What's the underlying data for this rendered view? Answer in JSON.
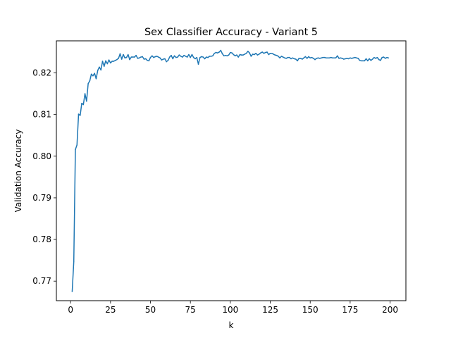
{
  "chart_data": {
    "type": "line",
    "title": "Sex Classifier Accuracy - Variant 5",
    "xlabel": "k",
    "ylabel": "Validation Accuracy",
    "xlim": [
      -8.9,
      209.9
    ],
    "ylim": [
      0.7653,
      0.8277
    ],
    "xticks": [
      0,
      25,
      50,
      75,
      100,
      125,
      150,
      175,
      200
    ],
    "yticks": [
      0.77,
      0.78,
      0.79,
      0.8,
      0.81,
      0.82
    ],
    "xtick_labels": [
      "0",
      "25",
      "50",
      "75",
      "100",
      "125",
      "150",
      "175",
      "200"
    ],
    "ytick_labels": [
      "0.77",
      "0.78",
      "0.79",
      "0.80",
      "0.81",
      "0.82"
    ],
    "grid": false,
    "line_color": "#1f77b4",
    "series": [
      {
        "x": [
          1,
          2,
          3,
          4,
          5,
          6,
          7,
          8,
          9,
          10,
          11,
          12,
          13,
          14,
          15,
          16,
          17,
          18,
          19,
          20,
          21,
          22,
          23,
          24,
          25,
          26,
          27,
          28,
          29,
          30,
          31,
          32,
          33,
          34,
          35,
          36,
          37,
          38,
          39,
          40,
          41,
          42,
          43,
          44,
          45,
          46,
          47,
          48,
          49,
          50,
          51,
          52,
          53,
          54,
          55,
          56,
          57,
          58,
          59,
          60,
          61,
          62,
          63,
          64,
          65,
          66,
          67,
          68,
          69,
          70,
          71,
          72,
          73,
          74,
          75,
          76,
          77,
          78,
          79,
          80,
          81,
          82,
          83,
          84,
          85,
          86,
          87,
          88,
          89,
          90,
          91,
          92,
          93,
          94,
          95,
          96,
          97,
          98,
          99,
          100,
          101,
          102,
          103,
          104,
          105,
          106,
          107,
          108,
          109,
          110,
          111,
          112,
          113,
          114,
          115,
          116,
          117,
          118,
          119,
          120,
          121,
          122,
          123,
          124,
          125,
          126,
          127,
          128,
          129,
          130,
          131,
          132,
          133,
          134,
          135,
          136,
          137,
          138,
          139,
          140,
          141,
          142,
          143,
          144,
          145,
          146,
          147,
          148,
          149,
          150,
          151,
          152,
          153,
          154,
          155,
          156,
          157,
          158,
          159,
          160,
          161,
          162,
          163,
          164,
          165,
          166,
          167,
          168,
          169,
          170,
          171,
          172,
          173,
          174,
          175,
          176,
          177,
          178,
          179,
          180,
          181,
          182,
          183,
          184,
          185,
          186,
          187,
          188,
          189,
          190,
          191,
          192,
          193,
          194,
          195,
          196,
          197,
          198,
          199
        ],
        "values": [
          0.7675,
          0.7747,
          0.8016,
          0.8027,
          0.8101,
          0.8098,
          0.8127,
          0.8124,
          0.815,
          0.8132,
          0.8174,
          0.8181,
          0.8197,
          0.8193,
          0.8199,
          0.8186,
          0.8206,
          0.8214,
          0.8207,
          0.8228,
          0.8216,
          0.8229,
          0.8222,
          0.8231,
          0.8224,
          0.8228,
          0.8228,
          0.823,
          0.8232,
          0.8235,
          0.8246,
          0.8233,
          0.8244,
          0.8236,
          0.8237,
          0.8244,
          0.8232,
          0.8238,
          0.8238,
          0.8238,
          0.8242,
          0.8235,
          0.8236,
          0.8238,
          0.8239,
          0.8233,
          0.8234,
          0.823,
          0.8229,
          0.8237,
          0.8241,
          0.8237,
          0.8239,
          0.824,
          0.8238,
          0.8236,
          0.8231,
          0.8233,
          0.8234,
          0.8227,
          0.823,
          0.8238,
          0.8242,
          0.8234,
          0.8241,
          0.8237,
          0.8238,
          0.8243,
          0.824,
          0.8238,
          0.8242,
          0.824,
          0.8238,
          0.8244,
          0.8237,
          0.8244,
          0.8237,
          0.8234,
          0.8237,
          0.8221,
          0.8237,
          0.8239,
          0.8238,
          0.8234,
          0.8238,
          0.8237,
          0.824,
          0.824,
          0.8241,
          0.8247,
          0.8249,
          0.8248,
          0.825,
          0.8254,
          0.8246,
          0.8241,
          0.8242,
          0.8241,
          0.8243,
          0.8249,
          0.8248,
          0.8244,
          0.8241,
          0.8243,
          0.8238,
          0.8244,
          0.8243,
          0.8243,
          0.8245,
          0.8247,
          0.8252,
          0.8248,
          0.824,
          0.8245,
          0.8244,
          0.8247,
          0.8243,
          0.8245,
          0.8248,
          0.825,
          0.8247,
          0.8249,
          0.825,
          0.8244,
          0.8247,
          0.8247,
          0.8245,
          0.8243,
          0.8242,
          0.824,
          0.8236,
          0.824,
          0.8238,
          0.8236,
          0.8235,
          0.8237,
          0.8237,
          0.8234,
          0.8236,
          0.8234,
          0.8233,
          0.8229,
          0.8235,
          0.8235,
          0.8233,
          0.8236,
          0.8239,
          0.8235,
          0.8239,
          0.8236,
          0.8237,
          0.8235,
          0.8232,
          0.8235,
          0.8236,
          0.8235,
          0.8236,
          0.8237,
          0.8237,
          0.8236,
          0.8236,
          0.8236,
          0.8237,
          0.8236,
          0.8236,
          0.8236,
          0.8241,
          0.8235,
          0.8236,
          0.8235,
          0.8233,
          0.8234,
          0.8235,
          0.8234,
          0.8236,
          0.8235,
          0.8236,
          0.8237,
          0.8236,
          0.8235,
          0.823,
          0.8229,
          0.8229,
          0.8229,
          0.8234,
          0.8229,
          0.8234,
          0.823,
          0.8233,
          0.8237,
          0.8235,
          0.8237,
          0.8232,
          0.823,
          0.8237,
          0.8238,
          0.8235,
          0.8237,
          0.8236
        ]
      }
    ]
  }
}
